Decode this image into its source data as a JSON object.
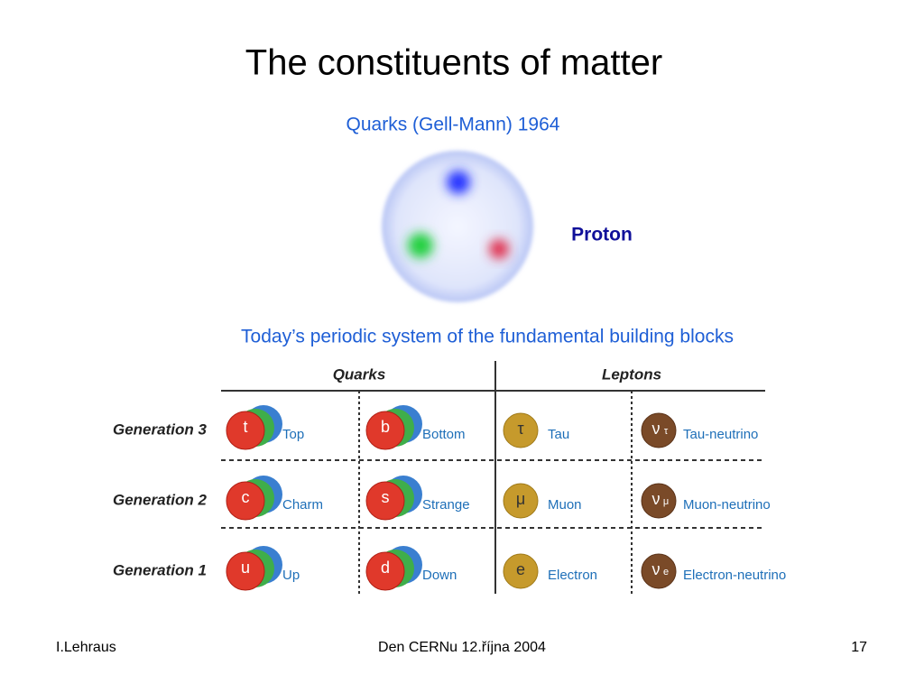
{
  "title": "The constituents of matter",
  "subtitle": "Quarks (Gell-Mann) 1964",
  "proton_label": "Proton",
  "heading": "Today’s periodic system of the fundamental building blocks",
  "table": {
    "headers": [
      "Quarks",
      "Leptons"
    ],
    "rows": [
      {
        "generation": "Generation 3",
        "cells": [
          {
            "symbol": "t",
            "name": "Top"
          },
          {
            "symbol": "b",
            "name": "Bottom"
          },
          {
            "symbol": "τ",
            "name": "Tau"
          },
          {
            "symbol": "ν",
            "sub": "τ",
            "name": "Tau-neutrino"
          }
        ]
      },
      {
        "generation": "Generation 2",
        "cells": [
          {
            "symbol": "c",
            "name": "Charm"
          },
          {
            "symbol": "s",
            "name": "Strange"
          },
          {
            "symbol": "μ",
            "name": "Muon"
          },
          {
            "symbol": "ν",
            "sub": "μ",
            "name": "Muon-neutrino"
          }
        ]
      },
      {
        "generation": "Generation 1",
        "cells": [
          {
            "symbol": "u",
            "name": "Up"
          },
          {
            "symbol": "d",
            "name": "Down"
          },
          {
            "symbol": "e",
            "name": "Electron"
          },
          {
            "symbol": "ν",
            "sub": "e",
            "name": "Electron-neutrino"
          }
        ]
      }
    ]
  },
  "footer": {
    "left": "I.Lehraus",
    "center": "Den CERNu 12.října 2004",
    "right": "17"
  }
}
